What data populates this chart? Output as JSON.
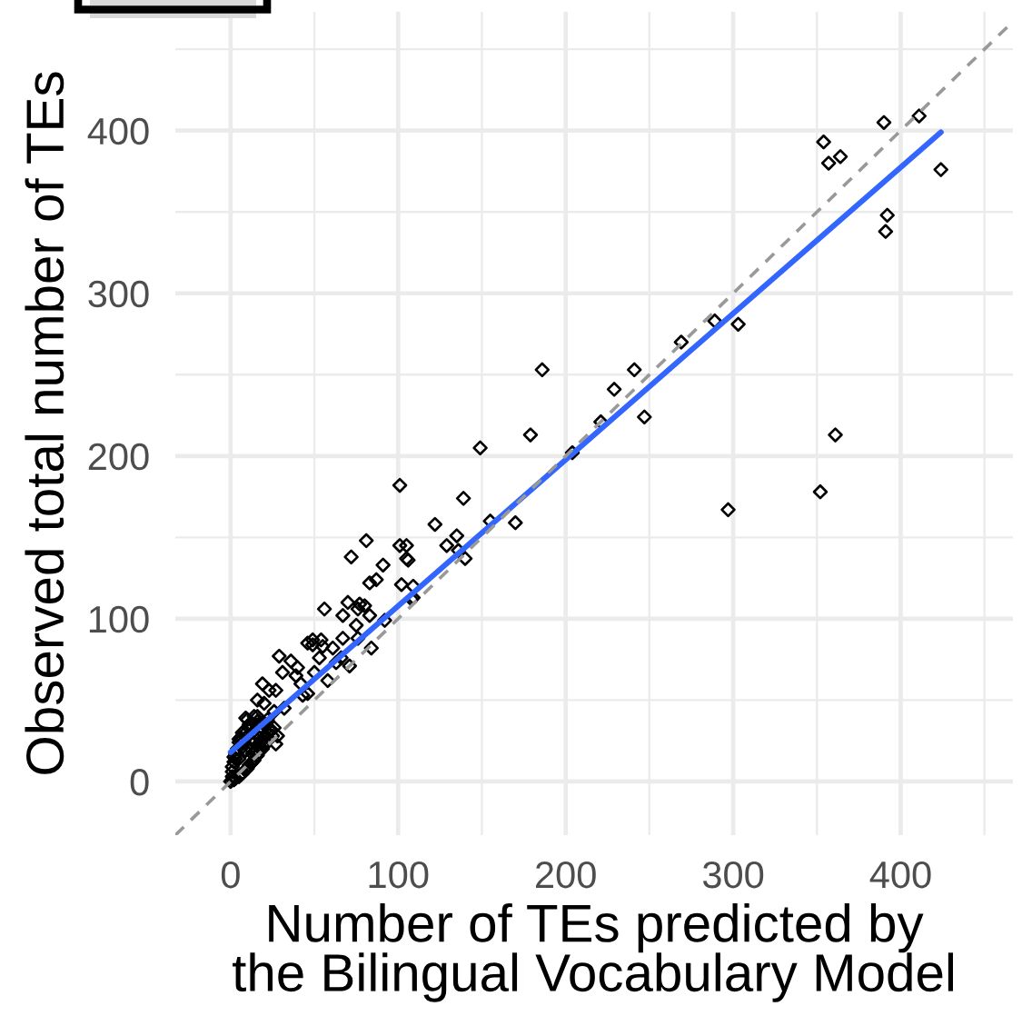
{
  "chart_data": {
    "type": "scatter",
    "xlabel": "Number of TEs predicted by\nthe Bilingual Vocabulary Model",
    "ylabel": "Observed total number of TEs",
    "xlim": [
      -33,
      467
    ],
    "ylim": [
      -33,
      473
    ],
    "xticks": [
      0,
      {
        "value": 50,
        "label": null
      },
      100,
      {
        "value": 150,
        "label": null
      },
      200,
      {
        "value": 250,
        "label": null
      },
      300,
      {
        "value": 350,
        "label": null
      },
      400,
      {
        "value": 450,
        "label": null
      }
    ],
    "yticks": [
      0,
      {
        "value": 50,
        "label": null
      },
      100,
      {
        "value": 150,
        "label": null
      },
      200,
      {
        "value": 250,
        "label": null
      },
      300,
      {
        "value": 350,
        "label": null
      },
      400,
      {
        "value": 450,
        "label": null
      }
    ],
    "grid": true,
    "series": [
      {
        "color": "#000000",
        "marker": "diamond",
        "x": [
          390,
          411,
          354,
          357,
          364,
          424,
          392,
          391,
          289,
          303,
          361,
          352,
          297,
          269,
          186,
          241,
          229,
          247,
          221,
          179,
          149,
          204,
          101,
          139,
          122,
          155,
          170,
          135,
          129,
          136,
          140,
          101,
          105,
          105,
          106,
          81,
          91,
          83,
          87,
          102,
          109,
          109,
          108,
          92,
          83,
          80,
          84,
          72,
          56,
          70,
          67,
          77,
          76,
          75,
          67,
          76,
          71,
          66,
          49,
          49,
          54,
          55,
          46,
          61,
          53,
          63,
          29,
          36,
          40,
          39,
          31,
          50,
          42,
          46,
          43,
          58,
          19,
          23,
          16,
          20,
          27,
          32,
          26,
          9,
          11,
          28,
          27,
          16,
          21,
          24,
          12,
          5,
          18,
          2,
          1,
          1,
          2,
          5,
          5,
          7,
          7,
          8,
          9,
          9,
          10,
          10,
          11,
          12,
          12,
          13,
          13,
          14,
          14,
          15,
          15,
          16,
          16,
          17,
          18,
          18,
          19,
          20,
          21,
          22,
          6,
          4,
          3,
          1,
          2,
          3,
          6,
          9,
          11,
          13,
          17,
          20,
          23,
          25,
          24,
          19,
          14,
          10,
          7,
          5,
          3,
          12,
          16,
          21,
          22,
          26,
          0,
          1
        ],
        "values": [
          405,
          409,
          393,
          380,
          384,
          376,
          348,
          338,
          283,
          281,
          213,
          178,
          167,
          270,
          253,
          253,
          241,
          224,
          221,
          213,
          205,
          202,
          182,
          174,
          158,
          160,
          159,
          151,
          145,
          142,
          137,
          145,
          145,
          137,
          136,
          148,
          133,
          122,
          124,
          121,
          120,
          113,
          112,
          99,
          102,
          108,
          82,
          138,
          106,
          110,
          102,
          109,
          106,
          96,
          88,
          88,
          71,
          76,
          87,
          84,
          87,
          83,
          85,
          82,
          76,
          73,
          77,
          74,
          70,
          65,
          67,
          67,
          60,
          54,
          53,
          62,
          60,
          56,
          50,
          48,
          56,
          45,
          43,
          39,
          35,
          28,
          23,
          37,
          34,
          31,
          26,
          26,
          21,
          15,
          1,
          3,
          1,
          3,
          14,
          5,
          21,
          25,
          19,
          30,
          8,
          28,
          33,
          11,
          20,
          17,
          30,
          13,
          24,
          19,
          35,
          16,
          28,
          22,
          25,
          31,
          20,
          27,
          24,
          30,
          27,
          20,
          14,
          6,
          12,
          2,
          4,
          7,
          10,
          12,
          18,
          22,
          26,
          28,
          32,
          36,
          40,
          38,
          30,
          24,
          17,
          35,
          40,
          35,
          38,
          33,
          0,
          9
        ]
      },
      {
        "type": "line",
        "color": "#3366ff",
        "x": [
          0,
          424
        ],
        "values": [
          18,
          399
        ]
      },
      {
        "type": "line",
        "color": "#999999",
        "line_style": "dashed",
        "x": [
          -33,
          467
        ],
        "values": [
          -33,
          467
        ]
      }
    ]
  }
}
